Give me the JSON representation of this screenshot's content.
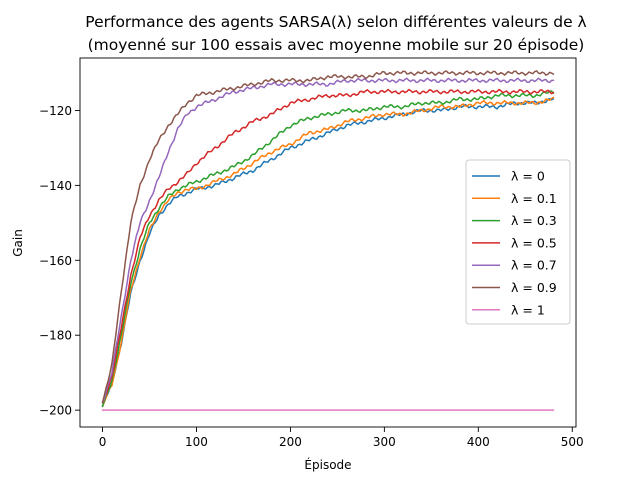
{
  "chart_data": {
    "type": "line",
    "title_line1": "Performance des agents SARSA(λ) selon différentes valeurs de λ",
    "title_line2": "(moyenné sur 100 essais avec moyenne mobile sur 20 épisode)",
    "xlabel": "Épisode",
    "ylabel": "Gain",
    "xlim": [
      -24,
      504
    ],
    "ylim": [
      -204.5,
      -106
    ],
    "xticks": [
      0,
      100,
      200,
      300,
      400,
      500
    ],
    "yticks": [
      -200,
      -180,
      -160,
      -140,
      -120
    ],
    "xtick_labels": [
      "0",
      "100",
      "200",
      "300",
      "400",
      "500"
    ],
    "ytick_labels": [
      "−200",
      "−180",
      "−160",
      "−140",
      "−120"
    ],
    "grid": false,
    "legend_position": "center-right",
    "series": [
      {
        "name": "λ = 0",
        "color": "#1f77b4",
        "points": [
          [
            0,
            -199
          ],
          [
            10,
            -193
          ],
          [
            20,
            -182
          ],
          [
            30,
            -169
          ],
          [
            40,
            -160
          ],
          [
            50,
            -153
          ],
          [
            60,
            -148
          ],
          [
            70,
            -145
          ],
          [
            80,
            -143
          ],
          [
            90,
            -142
          ],
          [
            100,
            -141
          ],
          [
            120,
            -140
          ],
          [
            140,
            -138
          ],
          [
            160,
            -136
          ],
          [
            180,
            -133
          ],
          [
            200,
            -130
          ],
          [
            220,
            -128
          ],
          [
            240,
            -126
          ],
          [
            260,
            -124
          ],
          [
            280,
            -123
          ],
          [
            300,
            -122
          ],
          [
            320,
            -121
          ],
          [
            340,
            -120
          ],
          [
            360,
            -120
          ],
          [
            380,
            -119
          ],
          [
            400,
            -119
          ],
          [
            420,
            -119
          ],
          [
            440,
            -118
          ],
          [
            460,
            -118
          ],
          [
            480,
            -117
          ]
        ]
      },
      {
        "name": "λ = 0.1",
        "color": "#ff7f0e",
        "points": [
          [
            0,
            -199
          ],
          [
            10,
            -193
          ],
          [
            20,
            -182
          ],
          [
            30,
            -168
          ],
          [
            40,
            -159
          ],
          [
            50,
            -152
          ],
          [
            60,
            -147
          ],
          [
            70,
            -144
          ],
          [
            80,
            -142
          ],
          [
            90,
            -141
          ],
          [
            100,
            -141
          ],
          [
            120,
            -139
          ],
          [
            140,
            -137
          ],
          [
            160,
            -134
          ],
          [
            180,
            -131
          ],
          [
            200,
            -129
          ],
          [
            220,
            -126
          ],
          [
            240,
            -125
          ],
          [
            260,
            -123
          ],
          [
            280,
            -122
          ],
          [
            300,
            -121
          ],
          [
            320,
            -121
          ],
          [
            340,
            -120
          ],
          [
            360,
            -119
          ],
          [
            380,
            -119
          ],
          [
            400,
            -118
          ],
          [
            420,
            -118
          ],
          [
            440,
            -118
          ],
          [
            460,
            -118
          ],
          [
            480,
            -117
          ]
        ]
      },
      {
        "name": "λ = 0.3",
        "color": "#2ca02c",
        "points": [
          [
            0,
            -199
          ],
          [
            10,
            -192
          ],
          [
            20,
            -180
          ],
          [
            30,
            -166
          ],
          [
            40,
            -157
          ],
          [
            50,
            -150
          ],
          [
            60,
            -146
          ],
          [
            70,
            -143
          ],
          [
            80,
            -141
          ],
          [
            90,
            -140
          ],
          [
            100,
            -139
          ],
          [
            120,
            -137
          ],
          [
            140,
            -135
          ],
          [
            160,
            -132
          ],
          [
            180,
            -128
          ],
          [
            200,
            -124
          ],
          [
            220,
            -122
          ],
          [
            240,
            -121
          ],
          [
            260,
            -120
          ],
          [
            280,
            -120
          ],
          [
            300,
            -119
          ],
          [
            320,
            -119
          ],
          [
            340,
            -118
          ],
          [
            360,
            -118
          ],
          [
            380,
            -117
          ],
          [
            400,
            -117
          ],
          [
            420,
            -116
          ],
          [
            440,
            -116
          ],
          [
            460,
            -116
          ],
          [
            480,
            -115
          ]
        ]
      },
      {
        "name": "λ = 0.5",
        "color": "#d62728",
        "points": [
          [
            0,
            -198
          ],
          [
            10,
            -191
          ],
          [
            20,
            -178
          ],
          [
            30,
            -164
          ],
          [
            40,
            -154
          ],
          [
            50,
            -148
          ],
          [
            60,
            -144
          ],
          [
            70,
            -141
          ],
          [
            80,
            -139
          ],
          [
            90,
            -137
          ],
          [
            100,
            -134
          ],
          [
            120,
            -130
          ],
          [
            140,
            -126
          ],
          [
            160,
            -123
          ],
          [
            180,
            -121
          ],
          [
            200,
            -118
          ],
          [
            220,
            -117
          ],
          [
            240,
            -116
          ],
          [
            260,
            -116
          ],
          [
            280,
            -115
          ],
          [
            300,
            -115
          ],
          [
            320,
            -115
          ],
          [
            340,
            -115
          ],
          [
            360,
            -115
          ],
          [
            380,
            -115
          ],
          [
            400,
            -115
          ],
          [
            420,
            -115
          ],
          [
            440,
            -115
          ],
          [
            460,
            -115
          ],
          [
            480,
            -115
          ]
        ]
      },
      {
        "name": "λ = 0.7",
        "color": "#9467bd",
        "points": [
          [
            0,
            -198
          ],
          [
            10,
            -190
          ],
          [
            20,
            -175
          ],
          [
            30,
            -160
          ],
          [
            40,
            -150
          ],
          [
            50,
            -144
          ],
          [
            60,
            -138
          ],
          [
            70,
            -131
          ],
          [
            80,
            -125
          ],
          [
            90,
            -121
          ],
          [
            100,
            -119
          ],
          [
            120,
            -117
          ],
          [
            140,
            -115
          ],
          [
            160,
            -114
          ],
          [
            180,
            -113
          ],
          [
            200,
            -113
          ],
          [
            220,
            -113
          ],
          [
            240,
            -113
          ],
          [
            260,
            -112
          ],
          [
            280,
            -112
          ],
          [
            300,
            -112
          ],
          [
            320,
            -112
          ],
          [
            340,
            -112
          ],
          [
            360,
            -112
          ],
          [
            380,
            -112
          ],
          [
            400,
            -112
          ],
          [
            420,
            -112
          ],
          [
            440,
            -112
          ],
          [
            460,
            -112
          ],
          [
            480,
            -112
          ]
        ]
      },
      {
        "name": "λ = 0.9",
        "color": "#8c564b",
        "points": [
          [
            0,
            -198
          ],
          [
            10,
            -188
          ],
          [
            20,
            -168
          ],
          [
            30,
            -150
          ],
          [
            40,
            -140
          ],
          [
            50,
            -133
          ],
          [
            60,
            -128
          ],
          [
            70,
            -124
          ],
          [
            80,
            -121
          ],
          [
            90,
            -118
          ],
          [
            100,
            -116
          ],
          [
            120,
            -115
          ],
          [
            140,
            -114
          ],
          [
            160,
            -113
          ],
          [
            180,
            -112
          ],
          [
            200,
            -112
          ],
          [
            220,
            -112
          ],
          [
            240,
            -111
          ],
          [
            260,
            -111
          ],
          [
            280,
            -111
          ],
          [
            300,
            -110
          ],
          [
            320,
            -110
          ],
          [
            340,
            -110
          ],
          [
            360,
            -110
          ],
          [
            380,
            -110
          ],
          [
            400,
            -110
          ],
          [
            420,
            -110
          ],
          [
            440,
            -110
          ],
          [
            460,
            -110
          ],
          [
            480,
            -110
          ]
        ]
      },
      {
        "name": "λ = 1",
        "color": "#e377c2",
        "points": [
          [
            0,
            -200
          ],
          [
            480,
            -200
          ]
        ]
      }
    ]
  }
}
